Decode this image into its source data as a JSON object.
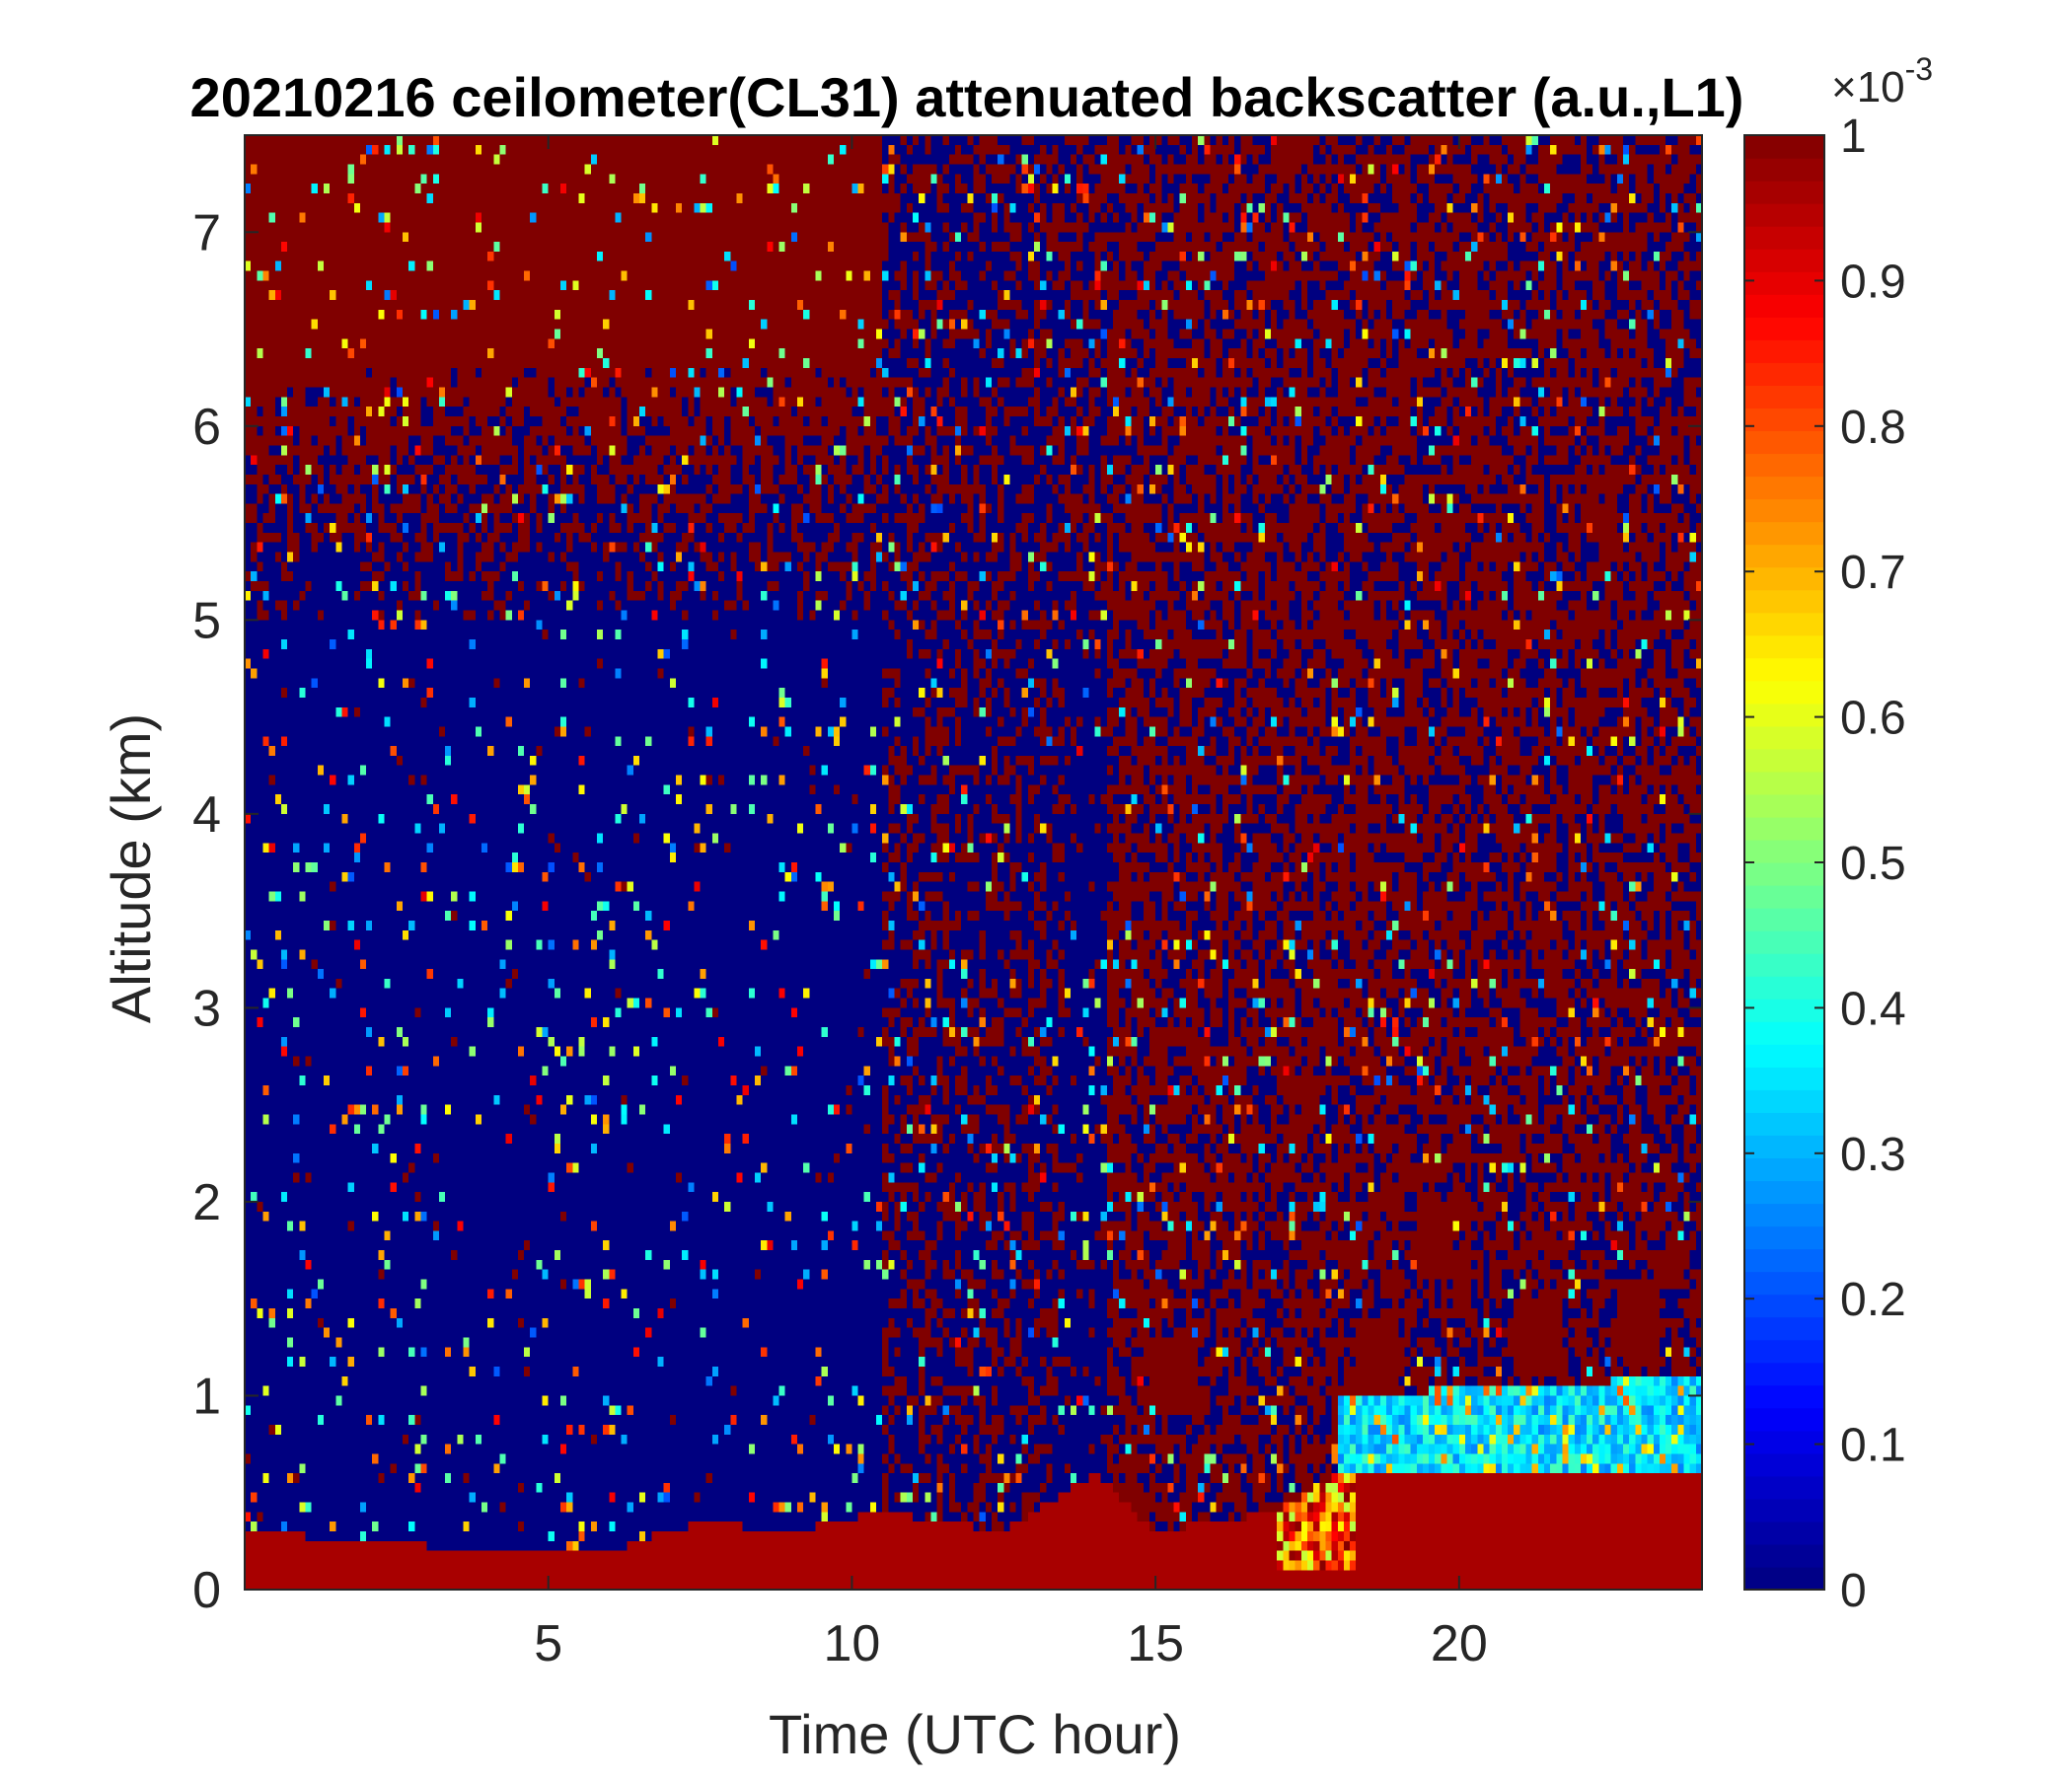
{
  "chart_data": {
    "type": "heatmap",
    "title": "20210216 ceilometer(CL31) attenuated backscatter (a.u.,L1)",
    "xlabel": "Time (UTC hour)",
    "ylabel": "Altitude (km)",
    "xlim": [
      0,
      24
    ],
    "ylim": [
      0,
      7.5
    ],
    "x_ticks": [
      5,
      10,
      15,
      20
    ],
    "y_ticks": [
      0,
      1,
      2,
      3,
      4,
      5,
      6,
      7
    ],
    "colorbar": {
      "colormap": "jet",
      "clim": [
        0,
        1
      ],
      "ticks": [
        "0",
        "0.1",
        "0.2",
        "0.3",
        "0.4",
        "0.5",
        "0.6",
        "0.7",
        "0.8",
        "0.9",
        "1"
      ],
      "exponent_base": "×10",
      "exponent_power": "-3",
      "levels": 64
    },
    "grid": false,
    "features": {
      "aerosol_layer_top_km": [
        [
          0.0,
          0.3
        ],
        [
          2.0,
          0.25
        ],
        [
          4.0,
          0.2
        ],
        [
          6.0,
          0.2
        ],
        [
          7.5,
          0.35
        ],
        [
          9.0,
          0.3
        ],
        [
          10.5,
          0.4
        ],
        [
          12.5,
          0.3
        ],
        [
          14.0,
          0.6
        ],
        [
          15.0,
          0.3
        ],
        [
          17.0,
          0.4
        ],
        [
          18.0,
          0.6
        ]
      ],
      "boundary_layer_top_km": [
        [
          18.0,
          1.0
        ],
        [
          24.0,
          1.1
        ]
      ],
      "high_noise_start_hour": 14.2,
      "precipitation_noise_hours": [
        10.5,
        13.5
      ],
      "clouds": [
        {
          "x": 15.3,
          "alt_km": 1.1
        },
        {
          "x": 18.6,
          "alt_km": 1.2
        },
        {
          "x": 21.4,
          "alt_km": 1.3
        },
        {
          "x": 23.0,
          "alt_km": 1.35
        },
        {
          "x": 19.6,
          "alt_km": 1.8
        }
      ]
    }
  },
  "colors": {
    "background": "#ffffff",
    "axis": "#262626",
    "low": "#00008f",
    "high": "#800000"
  }
}
